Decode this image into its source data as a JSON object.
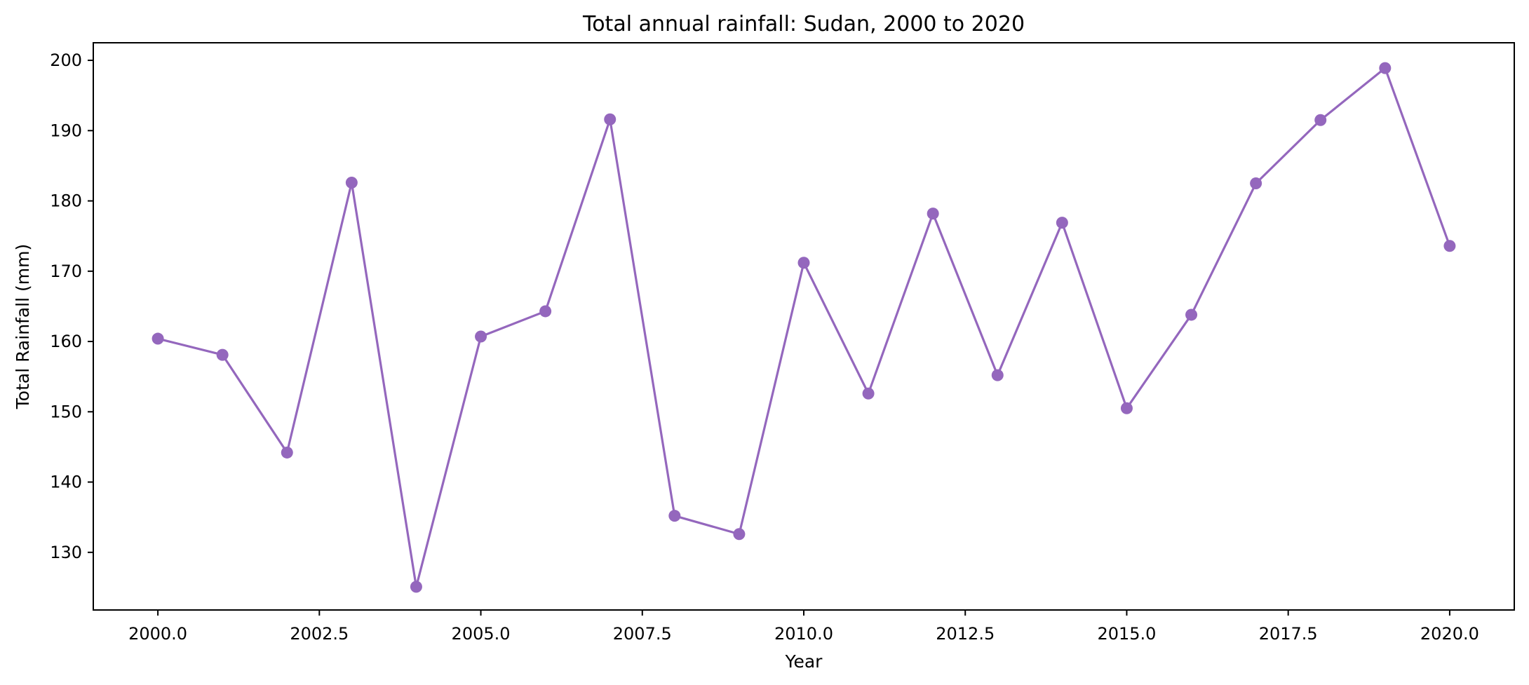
{
  "chart_data": {
    "type": "line",
    "title": "Total annual rainfall: Sudan, 2000 to 2020",
    "xlabel": "Year",
    "ylabel": "Total Rainfall (mm)",
    "xlim": [
      1999.0,
      2021.0
    ],
    "ylim": [
      121.8,
      202.5
    ],
    "x_ticks": [
      2000.0,
      2002.5,
      2005.0,
      2007.5,
      2010.0,
      2012.5,
      2015.0,
      2017.5,
      2020.0
    ],
    "x_tick_labels": [
      "2000.0",
      "2002.5",
      "2005.0",
      "2007.5",
      "2010.0",
      "2012.5",
      "2015.0",
      "2017.5",
      "2020.0"
    ],
    "y_ticks": [
      130,
      140,
      150,
      160,
      170,
      180,
      190,
      200
    ],
    "y_tick_labels": [
      "130",
      "140",
      "150",
      "160",
      "170",
      "180",
      "190",
      "200"
    ],
    "grid": false,
    "legend": "none",
    "series": [
      {
        "color": "#9467bd",
        "marker": "circle",
        "x": [
          2000,
          2001,
          2002,
          2003,
          2004,
          2005,
          2006,
          2007,
          2008,
          2009,
          2010,
          2011,
          2012,
          2013,
          2014,
          2015,
          2016,
          2017,
          2018,
          2019,
          2020
        ],
        "values": [
          160.4,
          158.1,
          144.2,
          182.6,
          125.1,
          160.7,
          164.3,
          191.6,
          135.2,
          132.6,
          171.2,
          152.6,
          178.2,
          155.2,
          176.9,
          150.5,
          163.8,
          182.5,
          191.5,
          198.9,
          173.6
        ]
      }
    ]
  }
}
